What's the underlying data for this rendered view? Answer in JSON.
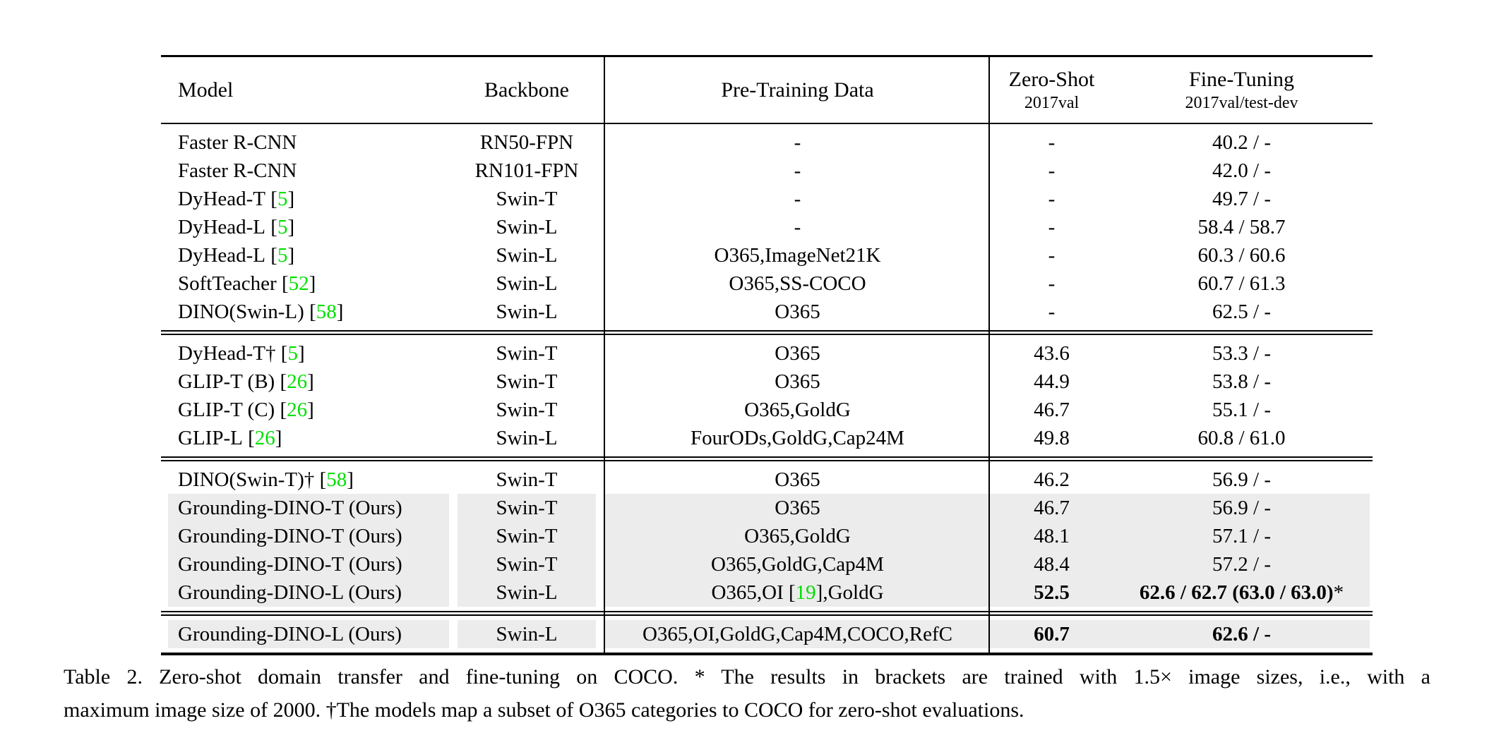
{
  "colors": {
    "citation_green": "#00df00",
    "row_highlight": "#ececec",
    "rule_black": "#000000"
  },
  "citation_brackets": {
    "open": "[",
    "close": "]"
  },
  "table": {
    "header": {
      "model": "Model",
      "backbone": "Backbone",
      "pretrain": "Pre-Training Data",
      "zeroshot_line1": "Zero-Shot",
      "zeroshot_line2": "2017val",
      "finetune_line1": "Fine-Tuning",
      "finetune_line2": "2017val/test-dev"
    },
    "sections": [
      {
        "rows": [
          {
            "model": "Faster R-CNN",
            "cite": "",
            "backbone": "RN50-FPN",
            "pre": "-",
            "pre_cite": "",
            "pre_post": "",
            "zeroshot": "-",
            "finetune": "40.2 / -",
            "star": false,
            "bold": false,
            "highlight": false
          },
          {
            "model": "Faster R-CNN",
            "cite": "",
            "backbone": "RN101-FPN",
            "pre": "-",
            "pre_cite": "",
            "pre_post": "",
            "zeroshot": "-",
            "finetune": "42.0 / -",
            "star": false,
            "bold": false,
            "highlight": false
          },
          {
            "model": "DyHead-T",
            "cite": "5",
            "backbone": "Swin-T",
            "pre": "-",
            "pre_cite": "",
            "pre_post": "",
            "zeroshot": "-",
            "finetune": "49.7 / -",
            "star": false,
            "bold": false,
            "highlight": false
          },
          {
            "model": "DyHead-L",
            "cite": "5",
            "backbone": "Swin-L",
            "pre": "-",
            "pre_cite": "",
            "pre_post": "",
            "zeroshot": "-",
            "finetune": "58.4 / 58.7",
            "star": false,
            "bold": false,
            "highlight": false
          },
          {
            "model": "DyHead-L",
            "cite": "5",
            "backbone": "Swin-L",
            "pre": "O365,ImageNet21K",
            "pre_cite": "",
            "pre_post": "",
            "zeroshot": "-",
            "finetune": "60.3 / 60.6",
            "star": false,
            "bold": false,
            "highlight": false
          },
          {
            "model": "SoftTeacher",
            "cite": "52",
            "backbone": "Swin-L",
            "pre": "O365,SS-COCO",
            "pre_cite": "",
            "pre_post": "",
            "zeroshot": "-",
            "finetune": "60.7 / 61.3",
            "star": false,
            "bold": false,
            "highlight": false
          },
          {
            "model": "DINO(Swin-L)",
            "cite": "58",
            "backbone": "Swin-L",
            "pre": "O365",
            "pre_cite": "",
            "pre_post": "",
            "zeroshot": "-",
            "finetune": "62.5 / -",
            "star": false,
            "bold": false,
            "highlight": false
          }
        ]
      },
      {
        "rows": [
          {
            "model": "DyHead-T†",
            "cite": "5",
            "backbone": "Swin-T",
            "pre": "O365",
            "pre_cite": "",
            "pre_post": "",
            "zeroshot": "43.6",
            "finetune": "53.3 / -",
            "star": false,
            "bold": false,
            "highlight": false
          },
          {
            "model": "GLIP-T (B)",
            "cite": "26",
            "backbone": "Swin-T",
            "pre": "O365",
            "pre_cite": "",
            "pre_post": "",
            "zeroshot": "44.9",
            "finetune": "53.8 / -",
            "star": false,
            "bold": false,
            "highlight": false
          },
          {
            "model": "GLIP-T (C)",
            "cite": "26",
            "backbone": "Swin-T",
            "pre": "O365,GoldG",
            "pre_cite": "",
            "pre_post": "",
            "zeroshot": "46.7",
            "finetune": "55.1 / -",
            "star": false,
            "bold": false,
            "highlight": false
          },
          {
            "model": "GLIP-L",
            "cite": "26",
            "backbone": "Swin-L",
            "pre": "FourODs,GoldG,Cap24M",
            "pre_cite": "",
            "pre_post": "",
            "zeroshot": "49.8",
            "finetune": "60.8 / 61.0",
            "star": false,
            "bold": false,
            "highlight": false
          }
        ]
      },
      {
        "rows": [
          {
            "model": "DINO(Swin-T)†",
            "cite": "58",
            "backbone": "Swin-T",
            "pre": "O365",
            "pre_cite": "",
            "pre_post": "",
            "zeroshot": "46.2",
            "finetune": "56.9 / -",
            "star": false,
            "bold": false,
            "highlight": false
          },
          {
            "model": "Grounding-DINO-T (Ours)",
            "cite": "",
            "backbone": "Swin-T",
            "pre": "O365",
            "pre_cite": "",
            "pre_post": "",
            "zeroshot": "46.7",
            "finetune": "56.9 / -",
            "star": false,
            "bold": false,
            "highlight": true
          },
          {
            "model": "Grounding-DINO-T (Ours)",
            "cite": "",
            "backbone": "Swin-T",
            "pre": "O365,GoldG",
            "pre_cite": "",
            "pre_post": "",
            "zeroshot": "48.1",
            "finetune": "57.1 / -",
            "star": false,
            "bold": false,
            "highlight": true
          },
          {
            "model": "Grounding-DINO-T (Ours)",
            "cite": "",
            "backbone": "Swin-T",
            "pre": "O365,GoldG,Cap4M",
            "pre_cite": "",
            "pre_post": "",
            "zeroshot": "48.4",
            "finetune": "57.2 / -",
            "star": false,
            "bold": false,
            "highlight": true
          },
          {
            "model": "Grounding-DINO-L (Ours)",
            "cite": "",
            "backbone": "Swin-L",
            "pre": "O365,OI",
            "pre_cite": "19",
            "pre_post": ",GoldG",
            "zeroshot": "52.5",
            "finetune": "62.6 / 62.7 (63.0 / 63.0)",
            "star": true,
            "bold": true,
            "highlight": true
          }
        ]
      },
      {
        "rows": [
          {
            "model": "Grounding-DINO-L (Ours)",
            "cite": "",
            "backbone": "Swin-L",
            "pre": "O365,OI,GoldG,Cap4M,COCO,RefC",
            "pre_cite": "",
            "pre_post": "",
            "zeroshot": "60.7",
            "finetune": "62.6 / -",
            "star": false,
            "bold": true,
            "highlight": true
          }
        ]
      }
    ]
  },
  "caption": {
    "line1": "Table 2.  Zero-shot domain transfer and fine-tuning on COCO. * The results in brackets are trained with 1.5× image sizes, i.e., with a",
    "line2": "maximum image size of 2000. †The models map a subset of O365 categories to COCO for zero-shot evaluations."
  }
}
